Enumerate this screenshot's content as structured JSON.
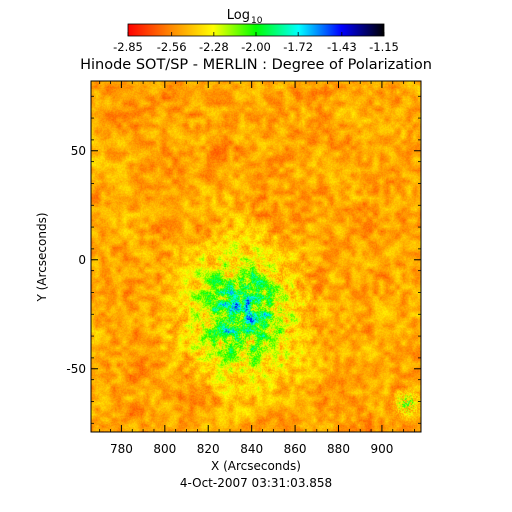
{
  "chart_data": {
    "type": "heatmap",
    "title": "Hinode SOT/SP - MERLIN : Degree of Polarization",
    "subtitle": "4-Oct-2007 03:31:03.858",
    "xlabel": "X (Arcseconds)",
    "ylabel": "Y (Arcseconds)",
    "xlim": [
      766,
      918
    ],
    "ylim": [
      -79,
      82
    ],
    "xticks": [
      780,
      800,
      820,
      840,
      860,
      880,
      900
    ],
    "yticks": [
      -50,
      0,
      50
    ],
    "colorbar": {
      "label_base": "Log",
      "label_sub": "10",
      "ticks": [
        "-2.85",
        "-2.56",
        "-2.28",
        "-2.00",
        "-1.72",
        "-1.43",
        "-1.15"
      ],
      "range": [
        -2.85,
        -1.15
      ],
      "colors": [
        "#ff0000",
        "#ff8800",
        "#ffff00",
        "#00ff00",
        "#00ffff",
        "#0000ff",
        "#000000"
      ]
    },
    "grid": false
  }
}
